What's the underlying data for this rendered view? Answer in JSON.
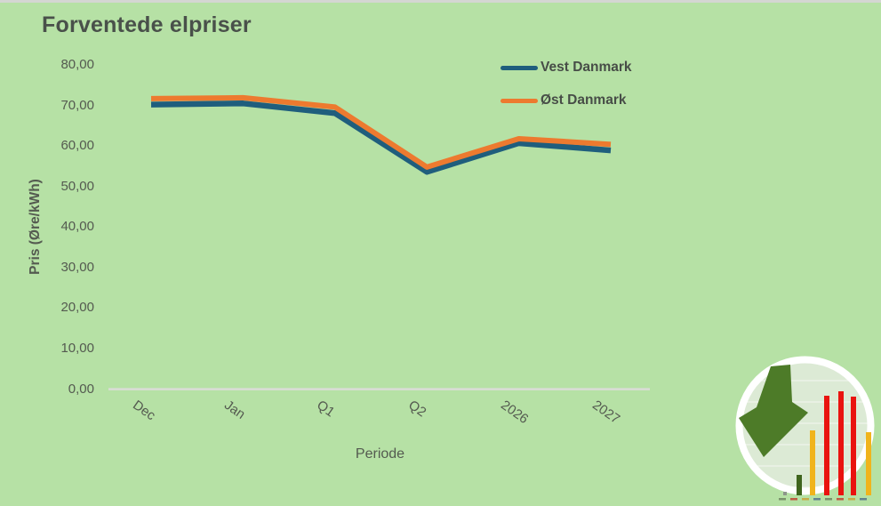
{
  "colors": {
    "background": "#b6e1a5",
    "top_strip": "#d4d6d2",
    "title_text": "#49504a",
    "axis_text": "#545a50",
    "axis_line": "#dadcd6"
  },
  "chart_data": {
    "type": "line",
    "title": "Forventede elpriser",
    "categories": [
      "Dec",
      "Jan",
      "Q1",
      "Q2",
      "2026",
      "2027"
    ],
    "series": [
      {
        "name": "Vest Danmark",
        "color": "#1f5e7d",
        "values": [
          70.2,
          70.5,
          68.1,
          53.6,
          60.7,
          58.9
        ]
      },
      {
        "name": "Øst Danmark",
        "color": "#ed7a2f",
        "values": [
          71.7,
          71.9,
          69.6,
          54.8,
          61.8,
          60.4
        ]
      }
    ],
    "xlabel": "Periode",
    "ylabel": "Pris (Øre/kWh)",
    "ylim": [
      0,
      80
    ],
    "ytick_step": 10,
    "ytick_labels": [
      "0,00",
      "10,00",
      "20,00",
      "30,00",
      "40,00",
      "50,00",
      "60,00",
      "70,00",
      "80,00"
    ],
    "grid": false,
    "legend_position": "upper-right",
    "x_tick_rotation_deg": 35
  },
  "logo": {
    "description": "circular badge: dark-green arrow pointing down-left beside a mini bar chart",
    "ring_color": "#ffffff",
    "face_color": "#dcead5",
    "arrow_color": "#4d7b28",
    "bars": [
      {
        "color": "#8d978b",
        "height": 4
      },
      {
        "color": "#3f651d",
        "height": 23
      },
      {
        "color": "#f0b41c",
        "height": 73
      },
      {
        "color": "#e9130f",
        "height": 112
      },
      {
        "color": "#e9130f",
        "height": 117
      },
      {
        "color": "#e9130f",
        "height": 111
      },
      {
        "color": "#f0b41c",
        "height": 71
      }
    ]
  }
}
